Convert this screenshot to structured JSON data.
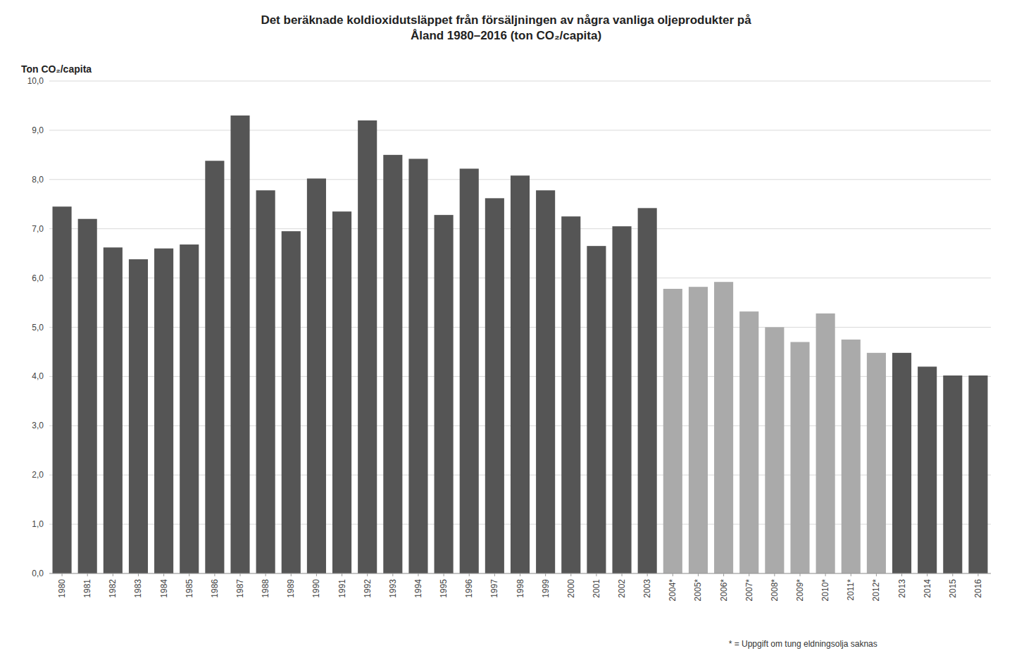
{
  "chart_data": {
    "type": "bar",
    "title": "Det beräknade koldioxidutsläppet från försäljningen av några vanliga oljeprodukter på\nÅland 1980–2016 (ton CO₂/capita)",
    "ylabel": "Ton CO₂/capita",
    "annotations": [
      "* = Uppgift om tung eldningsolja saknas"
    ],
    "categories": [
      "1980",
      "1981",
      "1982",
      "1983",
      "1984",
      "1985",
      "1986",
      "1987",
      "1988",
      "1989",
      "1990",
      "1991",
      "1992",
      "1993",
      "1994",
      "1995",
      "1996",
      "1997",
      "1998",
      "1999",
      "2000",
      "2001",
      "2002",
      "2003",
      "2004*",
      "2005*",
      "2006*",
      "2007*",
      "2008*",
      "2009*",
      "2010*",
      "2011*",
      "2012*",
      "2013",
      "2014",
      "2015",
      "2016"
    ],
    "values": [
      7.45,
      7.2,
      6.62,
      6.38,
      6.6,
      6.68,
      8.38,
      9.3,
      7.78,
      6.95,
      8.02,
      7.35,
      9.2,
      8.5,
      8.42,
      7.28,
      8.22,
      7.62,
      8.08,
      7.78,
      7.25,
      6.65,
      7.05,
      7.42,
      5.78,
      5.82,
      5.92,
      5.32,
      5.0,
      4.7,
      5.28,
      4.75,
      4.48,
      4.48,
      4.2,
      4.02,
      4.02
    ],
    "colors": [
      "#555555",
      "#555555",
      "#555555",
      "#555555",
      "#555555",
      "#555555",
      "#555555",
      "#555555",
      "#555555",
      "#555555",
      "#555555",
      "#555555",
      "#555555",
      "#555555",
      "#555555",
      "#555555",
      "#555555",
      "#555555",
      "#555555",
      "#555555",
      "#555555",
      "#555555",
      "#555555",
      "#555555",
      "#aaaaaa",
      "#aaaaaa",
      "#aaaaaa",
      "#aaaaaa",
      "#aaaaaa",
      "#aaaaaa",
      "#aaaaaa",
      "#aaaaaa",
      "#aaaaaa",
      "#555555",
      "#555555",
      "#555555",
      "#555555"
    ],
    "ylim": [
      0,
      10.0
    ],
    "yticks": [
      {
        "value": 0.0,
        "label": "0,0"
      },
      {
        "value": 1.0,
        "label": "1,0"
      },
      {
        "value": 2.0,
        "label": "2,0"
      },
      {
        "value": 3.0,
        "label": "3,0"
      },
      {
        "value": 4.0,
        "label": "4,0"
      },
      {
        "value": 5.0,
        "label": "5,0"
      },
      {
        "value": 6.0,
        "label": "6,0"
      },
      {
        "value": 7.0,
        "label": "7,0"
      },
      {
        "value": 8.0,
        "label": "8,0"
      },
      {
        "value": 9.0,
        "label": "9,0"
      },
      {
        "value": 10.0,
        "label": "10,0"
      }
    ],
    "grid": true
  }
}
